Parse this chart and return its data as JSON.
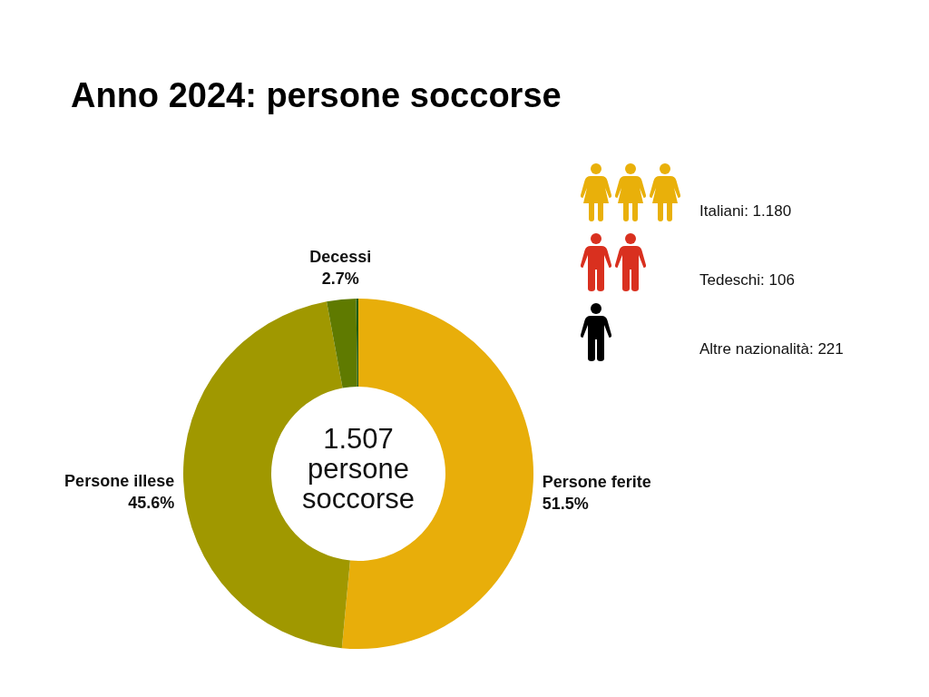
{
  "chart_data": {
    "type": "donut",
    "title": "Anno 2024: persone soccorse",
    "categories": [
      "Persone ferite",
      "Persone illese",
      "Decessi",
      null
    ],
    "values": [
      51.5,
      45.6,
      2.7,
      0.2
    ],
    "colors": [
      "#e8ae0a",
      "#a09800",
      "#5f7a00",
      "#1f5c14"
    ],
    "value_labels": [
      "51.5%",
      "45.6%",
      "2.7%",
      null
    ],
    "annotations": [
      "1.507 persone soccorse",
      "Italiani: 1.180",
      "Tedeschi: 106",
      "Altre nazionalità: 221"
    ]
  }
}
